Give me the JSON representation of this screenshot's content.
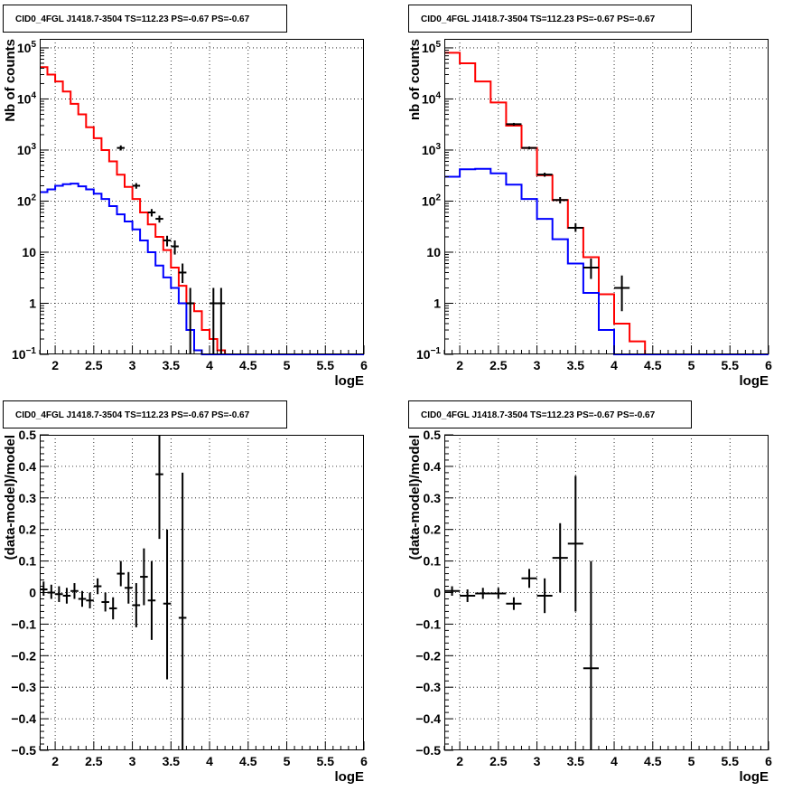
{
  "chart_data": [
    {
      "type": "line",
      "title": "CID0_4FGL J1418.7-3504 TS=112.23 PS=-0.67 PS=-0.67",
      "xlabel": "logE",
      "ylabel": "Nb of counts",
      "xlim": [
        1.8,
        6.0
      ],
      "ylim": [
        0.1,
        150000
      ],
      "ylog": true,
      "grid": true,
      "x_ticks": [
        "2",
        "2.5",
        "3",
        "3.5",
        "4",
        "4.5",
        "5",
        "5.5",
        "6"
      ],
      "y_ticks": [
        {
          "v": 0.1,
          "t": "10",
          "sup": "−1"
        },
        {
          "v": 1,
          "t": "1",
          "sup": ""
        },
        {
          "v": 10,
          "t": "10",
          "sup": ""
        },
        {
          "v": 100,
          "t": "10",
          "sup": "2"
        },
        {
          "v": 1000,
          "t": "10",
          "sup": "3"
        },
        {
          "v": 10000,
          "t": "10",
          "sup": "4"
        },
        {
          "v": 100000,
          "t": "10",
          "sup": "5"
        }
      ],
      "series": [
        {
          "type": "step",
          "color": "#ff0000",
          "bin_edges": [
            1.8,
            1.9,
            2.0,
            2.1,
            2.2,
            2.3,
            2.4,
            2.5,
            2.6,
            2.7,
            2.8,
            2.9,
            3.0,
            3.1,
            3.2,
            3.3,
            3.4,
            3.5,
            3.6,
            3.7,
            3.8,
            3.9,
            4.0,
            4.1,
            4.2,
            4.3,
            6.0
          ],
          "values": [
            42000,
            30000,
            22000,
            14000,
            8000,
            5000,
            2800,
            1700,
            1000,
            600,
            330,
            190,
            110,
            60,
            35,
            20,
            11,
            5,
            2.2,
            1.0,
            0.7,
            0.3,
            0.2,
            0.12,
            0.1,
            0.1
          ]
        },
        {
          "type": "step",
          "color": "#0000ff",
          "bin_edges": [
            1.8,
            1.9,
            2.0,
            2.1,
            2.2,
            2.3,
            2.4,
            2.5,
            2.6,
            2.7,
            2.8,
            2.9,
            3.0,
            3.1,
            3.2,
            3.3,
            3.4,
            3.5,
            3.6,
            3.7,
            3.8,
            3.9,
            4.0,
            4.1,
            4.2,
            4.3,
            6.0
          ],
          "values": [
            150,
            170,
            200,
            215,
            220,
            195,
            170,
            140,
            110,
            80,
            55,
            40,
            28,
            17,
            10,
            5.5,
            3.2,
            2.0,
            1.0,
            0.3,
            0.12,
            0.1,
            0.1,
            0.1,
            0.1,
            0.1
          ]
        },
        {
          "type": "points",
          "color": "#000000",
          "points": [
            {
              "x": 2.85,
              "y": 1100,
              "lo": 980,
              "hi": 1230,
              "xerr": 0.05
            },
            {
              "x": 3.05,
              "y": 200,
              "lo": 175,
              "hi": 225,
              "xerr": 0.05
            },
            {
              "x": 3.25,
              "y": 60,
              "lo": 50,
              "hi": 70,
              "xerr": 0.05
            },
            {
              "x": 3.35,
              "y": 45,
              "lo": 38,
              "hi": 52,
              "xerr": 0.05
            },
            {
              "x": 3.45,
              "y": 17,
              "lo": 13,
              "hi": 21,
              "xerr": 0.05
            },
            {
              "x": 3.55,
              "y": 13,
              "lo": 9,
              "hi": 17,
              "xerr": 0.05
            },
            {
              "x": 3.65,
              "y": 4,
              "lo": 2.5,
              "hi": 6,
              "xerr": 0.05
            },
            {
              "x": 3.75,
              "y": 1,
              "lo": 0.1,
              "hi": 2,
              "xerr": 0.05
            },
            {
              "x": 4.05,
              "y": 1,
              "lo": 0.1,
              "hi": 2,
              "xerr": 0.05
            },
            {
              "x": 4.15,
              "y": 1,
              "lo": 0.1,
              "hi": 2,
              "xerr": 0.05
            }
          ]
        }
      ]
    },
    {
      "type": "line",
      "title": "CID0_4FGL J1418.7-3504 TS=112.23 PS=-0.67 PS=-0.67",
      "xlabel": "logE",
      "ylabel": "nb of counts",
      "xlim": [
        1.8,
        6.0
      ],
      "ylim": [
        0.1,
        150000
      ],
      "ylog": true,
      "grid": true,
      "x_ticks": [
        "2",
        "2.5",
        "3",
        "3.5",
        "4",
        "4.5",
        "5",
        "5.5",
        "6"
      ],
      "y_ticks": [
        {
          "v": 0.1,
          "t": "10",
          "sup": "−1"
        },
        {
          "v": 1,
          "t": "1",
          "sup": ""
        },
        {
          "v": 10,
          "t": "10",
          "sup": ""
        },
        {
          "v": 100,
          "t": "10",
          "sup": "2"
        },
        {
          "v": 1000,
          "t": "10",
          "sup": "3"
        },
        {
          "v": 10000,
          "t": "10",
          "sup": "4"
        },
        {
          "v": 100000,
          "t": "10",
          "sup": "5"
        }
      ],
      "series": [
        {
          "type": "step",
          "color": "#ff0000",
          "bin_edges": [
            1.8,
            2.0,
            2.2,
            2.4,
            2.6,
            2.8,
            3.0,
            3.2,
            3.4,
            3.6,
            3.8,
            4.0,
            4.2,
            4.4,
            6.0
          ],
          "values": [
            80000,
            50000,
            22000,
            8500,
            3000,
            1100,
            320,
            105,
            30,
            8,
            1.5,
            0.4,
            0.18,
            0.1
          ]
        },
        {
          "type": "step",
          "color": "#0000ff",
          "bin_edges": [
            1.8,
            2.0,
            2.2,
            2.4,
            2.6,
            2.8,
            3.0,
            3.2,
            3.4,
            3.6,
            3.8,
            4.0,
            4.2,
            4.4,
            6.0
          ],
          "values": [
            300,
            420,
            430,
            350,
            210,
            110,
            45,
            18,
            6,
            1.6,
            0.3,
            0.1,
            0.1,
            0.1
          ]
        },
        {
          "type": "points",
          "color": "#000000",
          "points": [
            {
              "x": 2.7,
              "y": 3200,
              "lo": 3000,
              "hi": 3400,
              "xerr": 0.1
            },
            {
              "x": 2.9,
              "y": 1100,
              "lo": 1030,
              "hi": 1170,
              "xerr": 0.1
            },
            {
              "x": 3.1,
              "y": 330,
              "lo": 300,
              "hi": 360,
              "xerr": 0.1
            },
            {
              "x": 3.3,
              "y": 105,
              "lo": 90,
              "hi": 120,
              "xerr": 0.1
            },
            {
              "x": 3.5,
              "y": 30,
              "lo": 25,
              "hi": 37,
              "xerr": 0.1
            },
            {
              "x": 3.7,
              "y": 5,
              "lo": 3,
              "hi": 7.5,
              "xerr": 0.1
            },
            {
              "x": 4.1,
              "y": 2,
              "lo": 0.7,
              "hi": 3.5,
              "xerr": 0.1
            }
          ]
        }
      ]
    },
    {
      "type": "scatter",
      "title": "CID0_4FGL J1418.7-3504 TS=112.23 PS=-0.67 PS=-0.67",
      "xlabel": "logE",
      "ylabel": "(data-model)/model",
      "xlim": [
        1.8,
        6.0
      ],
      "ylim": [
        -0.5,
        0.5
      ],
      "ylog": false,
      "grid": true,
      "x_ticks": [
        "2",
        "2.5",
        "3",
        "3.5",
        "4",
        "4.5",
        "5",
        "5.5",
        "6"
      ],
      "y_ticks": [
        {
          "v": -0.5,
          "t": "−0.5",
          "sup": ""
        },
        {
          "v": -0.4,
          "t": "−0.4",
          "sup": ""
        },
        {
          "v": -0.3,
          "t": "−0.3",
          "sup": ""
        },
        {
          "v": -0.2,
          "t": "−0.2",
          "sup": ""
        },
        {
          "v": -0.1,
          "t": "−0.1",
          "sup": ""
        },
        {
          "v": 0,
          "t": "0",
          "sup": ""
        },
        {
          "v": 0.1,
          "t": "0.1",
          "sup": ""
        },
        {
          "v": 0.2,
          "t": "0.2",
          "sup": ""
        },
        {
          "v": 0.3,
          "t": "0.3",
          "sup": ""
        },
        {
          "v": 0.4,
          "t": "0.4",
          "sup": ""
        },
        {
          "v": 0.5,
          "t": "0.5",
          "sup": ""
        }
      ],
      "series": [
        {
          "type": "points",
          "color": "#000000",
          "points": [
            {
              "x": 1.85,
              "y": 0.01,
              "lo": -0.01,
              "hi": 0.035,
              "xerr": 0.05
            },
            {
              "x": 1.95,
              "y": 0.0,
              "lo": -0.02,
              "hi": 0.025,
              "xerr": 0.05
            },
            {
              "x": 2.05,
              "y": -0.005,
              "lo": -0.03,
              "hi": 0.02,
              "xerr": 0.05
            },
            {
              "x": 2.15,
              "y": -0.01,
              "lo": -0.035,
              "hi": 0.015,
              "xerr": 0.05
            },
            {
              "x": 2.25,
              "y": 0.005,
              "lo": -0.02,
              "hi": 0.03,
              "xerr": 0.05
            },
            {
              "x": 2.35,
              "y": -0.02,
              "lo": -0.045,
              "hi": 0.005,
              "xerr": 0.05
            },
            {
              "x": 2.45,
              "y": -0.025,
              "lo": -0.05,
              "hi": 0.0,
              "xerr": 0.05
            },
            {
              "x": 2.55,
              "y": 0.02,
              "lo": -0.005,
              "hi": 0.045,
              "xerr": 0.05
            },
            {
              "x": 2.65,
              "y": -0.03,
              "lo": -0.06,
              "hi": 0.0,
              "xerr": 0.05
            },
            {
              "x": 2.75,
              "y": -0.05,
              "lo": -0.085,
              "hi": -0.015,
              "xerr": 0.05
            },
            {
              "x": 2.85,
              "y": 0.06,
              "lo": 0.02,
              "hi": 0.1,
              "xerr": 0.05
            },
            {
              "x": 2.95,
              "y": 0.015,
              "lo": -0.035,
              "hi": 0.065,
              "xerr": 0.05
            },
            {
              "x": 3.05,
              "y": -0.04,
              "lo": -0.11,
              "hi": 0.03,
              "xerr": 0.05
            },
            {
              "x": 3.15,
              "y": 0.05,
              "lo": -0.04,
              "hi": 0.14,
              "xerr": 0.05
            },
            {
              "x": 3.25,
              "y": -0.025,
              "lo": -0.15,
              "hi": 0.1,
              "xerr": 0.05
            },
            {
              "x": 3.35,
              "y": 0.375,
              "lo": 0.17,
              "hi": 0.5,
              "xerr": 0.05
            },
            {
              "x": 3.45,
              "y": -0.035,
              "lo": -0.275,
              "hi": 0.2,
              "xerr": 0.05
            },
            {
              "x": 3.65,
              "y": -0.08,
              "lo": -0.5,
              "hi": 0.38,
              "xerr": 0.05
            }
          ]
        }
      ]
    },
    {
      "type": "scatter",
      "title": "CID0_4FGL J1418.7-3504 TS=112.23 PS=-0.67 PS=-0.67",
      "xlabel": "logE",
      "ylabel": "(data-model)/model",
      "xlim": [
        1.8,
        6.0
      ],
      "ylim": [
        -0.5,
        0.5
      ],
      "ylog": false,
      "grid": true,
      "x_ticks": [
        "2",
        "2.5",
        "3",
        "3.5",
        "4",
        "4.5",
        "5",
        "5.5",
        "6"
      ],
      "y_ticks": [
        {
          "v": -0.5,
          "t": "−0.5",
          "sup": ""
        },
        {
          "v": -0.4,
          "t": "−0.4",
          "sup": ""
        },
        {
          "v": -0.3,
          "t": "−0.3",
          "sup": ""
        },
        {
          "v": -0.2,
          "t": "−0.2",
          "sup": ""
        },
        {
          "v": -0.1,
          "t": "−0.1",
          "sup": ""
        },
        {
          "v": 0,
          "t": "0",
          "sup": ""
        },
        {
          "v": 0.1,
          "t": "0.1",
          "sup": ""
        },
        {
          "v": 0.2,
          "t": "0.2",
          "sup": ""
        },
        {
          "v": 0.3,
          "t": "0.3",
          "sup": ""
        },
        {
          "v": 0.4,
          "t": "0.4",
          "sup": ""
        },
        {
          "v": 0.5,
          "t": "0.5",
          "sup": ""
        }
      ],
      "series": [
        {
          "type": "points",
          "color": "#000000",
          "points": [
            {
              "x": 1.9,
              "y": 0.005,
              "lo": -0.01,
              "hi": 0.02,
              "xerr": 0.1
            },
            {
              "x": 2.1,
              "y": -0.01,
              "lo": -0.03,
              "hi": 0.01,
              "xerr": 0.1
            },
            {
              "x": 2.3,
              "y": -0.003,
              "lo": -0.02,
              "hi": 0.015,
              "xerr": 0.1
            },
            {
              "x": 2.5,
              "y": -0.003,
              "lo": -0.02,
              "hi": 0.015,
              "xerr": 0.1
            },
            {
              "x": 2.7,
              "y": -0.035,
              "lo": -0.055,
              "hi": -0.015,
              "xerr": 0.1
            },
            {
              "x": 2.9,
              "y": 0.045,
              "lo": 0.015,
              "hi": 0.075,
              "xerr": 0.1
            },
            {
              "x": 3.1,
              "y": -0.01,
              "lo": -0.065,
              "hi": 0.045,
              "xerr": 0.1
            },
            {
              "x": 3.3,
              "y": 0.11,
              "lo": 0.0,
              "hi": 0.22,
              "xerr": 0.1
            },
            {
              "x": 3.5,
              "y": 0.155,
              "lo": -0.06,
              "hi": 0.37,
              "xerr": 0.1
            },
            {
              "x": 3.7,
              "y": -0.24,
              "lo": -0.5,
              "hi": 0.1,
              "xerr": 0.1
            }
          ]
        }
      ]
    }
  ]
}
